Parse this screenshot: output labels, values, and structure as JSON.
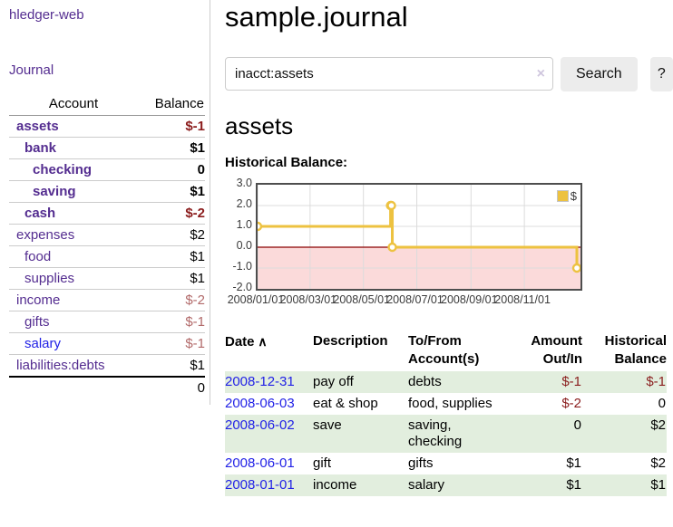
{
  "app": {
    "brand": "hledger-web",
    "nav_journal": "Journal"
  },
  "colors": {
    "link_purple": "#542d90",
    "link_blue": "#2222e6",
    "negative_strong": "#8b1c1c",
    "negative_soft": "#b26a6a",
    "row_stripe_green": "#e2eede",
    "chart_series_gold": "#EDC240",
    "chart_zero_line": "#8b0000",
    "chart_negative_region": "#fbdada",
    "chart_border": "#4e4e4e",
    "button_gray": "#ececec"
  },
  "sidebar": {
    "header": {
      "account": "Account",
      "balance": "Balance"
    },
    "accounts": [
      {
        "name": "assets",
        "indent": 0,
        "bold": true,
        "balance": "$-1",
        "neg": "strong"
      },
      {
        "name": "bank",
        "indent": 1,
        "bold": true,
        "balance": "$1",
        "neg": null
      },
      {
        "name": "checking",
        "indent": 2,
        "bold": true,
        "balance": "0",
        "neg": null
      },
      {
        "name": "saving",
        "indent": 2,
        "bold": true,
        "balance": "$1",
        "neg": null
      },
      {
        "name": "cash",
        "indent": 1,
        "bold": true,
        "balance": "$-2",
        "neg": "strong"
      },
      {
        "name": "expenses",
        "indent": 0,
        "bold": false,
        "balance": "$2",
        "neg": null
      },
      {
        "name": "food",
        "indent": 1,
        "bold": false,
        "balance": "$1",
        "neg": null
      },
      {
        "name": "supplies",
        "indent": 1,
        "bold": false,
        "balance": "$1",
        "neg": null
      },
      {
        "name": "income",
        "indent": 0,
        "bold": false,
        "balance": "$-2",
        "neg": "soft"
      },
      {
        "name": "gifts",
        "indent": 1,
        "bold": false,
        "balance": "$-1",
        "neg": "soft"
      },
      {
        "name": "salary",
        "indent": 1,
        "bold": false,
        "balance": "$-1",
        "neg": "soft",
        "blue": true
      },
      {
        "name": "liabilities:debts",
        "indent": 0,
        "bold": false,
        "balance": "$1",
        "neg": null
      }
    ],
    "total": "0"
  },
  "main": {
    "title": "sample.journal",
    "search": {
      "value": "inacct:assets",
      "clear_icon": "×",
      "button": "Search",
      "help": "?"
    },
    "account_heading": "assets",
    "chart_label": "Historical Balance:"
  },
  "chart_data": {
    "type": "line",
    "title": "Historical Balance",
    "step": true,
    "x": [
      "2008-01-01",
      "2008-06-01",
      "2008-06-02",
      "2008-06-03",
      "2008-12-31"
    ],
    "series": [
      {
        "name": "$",
        "color": "#EDC240",
        "values": [
          1,
          2,
          2,
          0,
          -1
        ]
      }
    ],
    "xlim": [
      "2008-01-01",
      "2008-12-31"
    ],
    "ylim": [
      -2,
      3
    ],
    "ytick_values": [
      3,
      2,
      1,
      0,
      -1,
      -2
    ],
    "yticks": [
      "3.0",
      "2.0",
      "1.0",
      "0.0",
      "-1.0",
      "-2.0"
    ],
    "xticks": [
      {
        "label": "2008/01/01",
        "date": "2008-01-01"
      },
      {
        "label": "2008/03/01",
        "date": "2008-03-01"
      },
      {
        "label": "2008/05/01",
        "date": "2008-05-01"
      },
      {
        "label": "2008/07/01",
        "date": "2008-07-01"
      },
      {
        "label": "2008/09/01",
        "date": "2008-09-01"
      },
      {
        "label": "2008/11/01",
        "date": "2008-11-01"
      }
    ],
    "grid": true,
    "legend": {
      "position": "top-right",
      "entries": [
        {
          "label": "$",
          "color": "#EDC240"
        }
      ]
    },
    "zero_line_color": "#8b0000",
    "negative_region_color": "#fbdada"
  },
  "register": {
    "sort_icon": "∧",
    "headers": [
      {
        "lines": [
          "Date"
        ],
        "sorted": true,
        "align": "left"
      },
      {
        "lines": [
          "Description"
        ],
        "align": "left"
      },
      {
        "lines": [
          "To/From",
          "Account(s)"
        ],
        "align": "left"
      },
      {
        "lines": [
          "Amount",
          "Out/In"
        ],
        "align": "right"
      },
      {
        "lines": [
          "Historical",
          "Balance"
        ],
        "align": "right"
      }
    ],
    "rows": [
      {
        "date": "2008-12-31",
        "description": "pay off",
        "accounts": [
          "debts"
        ],
        "amount": "$-1",
        "amount_neg": true,
        "balance": "$-1",
        "balance_neg": true,
        "stripe": true
      },
      {
        "date": "2008-06-03",
        "description": "eat & shop",
        "accounts": [
          "food, supplies"
        ],
        "amount": "$-2",
        "amount_neg": true,
        "balance": "0",
        "balance_neg": false,
        "stripe": false
      },
      {
        "date": "2008-06-02",
        "description": "save",
        "accounts": [
          "saving,",
          "checking"
        ],
        "amount": "0",
        "amount_neg": false,
        "balance": "$2",
        "balance_neg": false,
        "stripe": true
      },
      {
        "date": "2008-06-01",
        "description": "gift",
        "accounts": [
          "gifts"
        ],
        "amount": "$1",
        "amount_neg": false,
        "balance": "$2",
        "balance_neg": false,
        "stripe": false
      },
      {
        "date": "2008-01-01",
        "description": "income",
        "accounts": [
          "salary"
        ],
        "amount": "$1",
        "amount_neg": false,
        "balance": "$1",
        "balance_neg": false,
        "stripe": true
      }
    ]
  }
}
